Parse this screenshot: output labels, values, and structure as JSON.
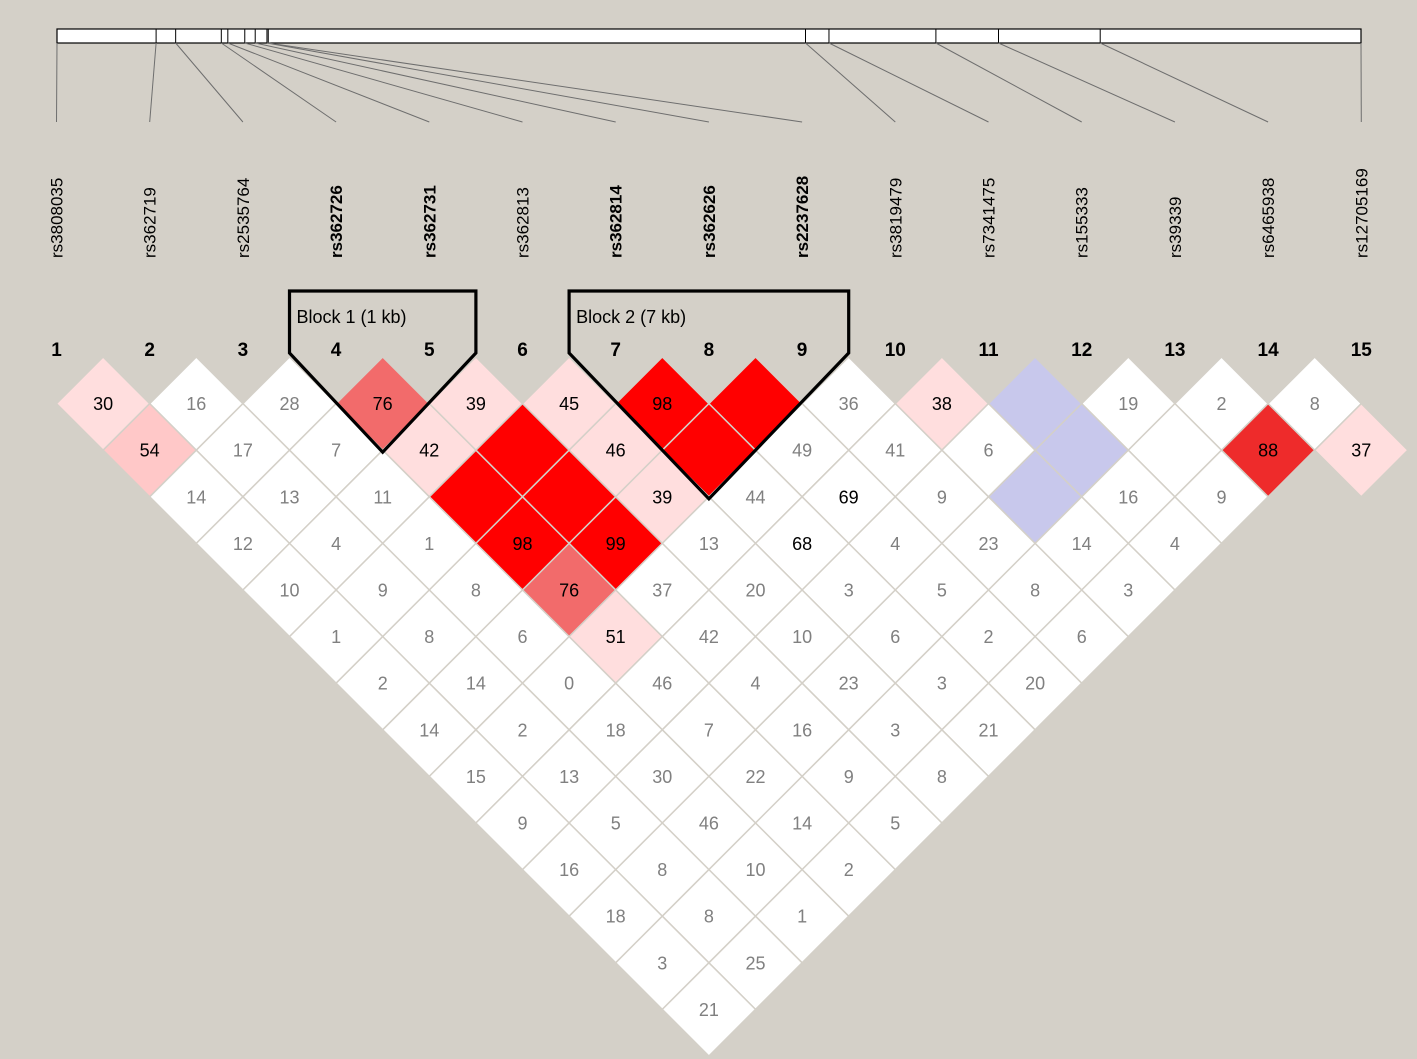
{
  "snps": [
    {
      "index": "1",
      "name": "rs3808035",
      "bold": false
    },
    {
      "index": "2",
      "name": "rs362719",
      "bold": false
    },
    {
      "index": "3",
      "name": "rs2535764",
      "bold": false
    },
    {
      "index": "4",
      "name": "rs362726",
      "bold": true
    },
    {
      "index": "5",
      "name": "rs362731",
      "bold": true
    },
    {
      "index": "6",
      "name": "rs362813",
      "bold": false
    },
    {
      "index": "7",
      "name": "rs362814",
      "bold": true
    },
    {
      "index": "8",
      "name": "rs362626",
      "bold": true
    },
    {
      "index": "9",
      "name": "rs2237628",
      "bold": true
    },
    {
      "index": "10",
      "name": "rs3819479",
      "bold": false
    },
    {
      "index": "11",
      "name": "rs7341475",
      "bold": false
    },
    {
      "index": "12",
      "name": "rs155333",
      "bold": false
    },
    {
      "index": "13",
      "name": "rs39339",
      "bold": false
    },
    {
      "index": "14",
      "name": "rs6465938",
      "bold": false
    },
    {
      "index": "15",
      "name": "rs12705169",
      "bold": false
    }
  ],
  "gene_map_fractions": [
    0.0,
    0.076,
    0.091,
    0.126,
    0.131,
    0.144,
    0.152,
    0.161,
    0.162,
    0.574,
    0.592,
    0.674,
    0.722,
    0.8,
    1.0
  ],
  "blocks": [
    {
      "label": "Block 1 (1 kb)",
      "from": 4,
      "to": 5
    },
    {
      "label": "Block 2 (7 kb)",
      "from": 7,
      "to": 9
    }
  ],
  "ld_rows": [
    [
      "30",
      "16",
      "28",
      "76",
      "39",
      "45",
      "98",
      "",
      "36",
      "38",
      "",
      "19",
      "2",
      "8"
    ],
    [
      "54",
      "17",
      "7",
      "42",
      "",
      "46",
      "",
      "49",
      "41",
      "6",
      "",
      "",
      "88",
      "37"
    ],
    [
      "14",
      "13",
      "11",
      "",
      "",
      "39",
      "44",
      "69",
      "9",
      "",
      "16",
      "9"
    ],
    [
      "12",
      "4",
      "1",
      "98",
      "99",
      "13",
      "68",
      "4",
      "23",
      "14",
      "4"
    ],
    [
      "10",
      "9",
      "8",
      "76",
      "37",
      "20",
      "3",
      "5",
      "8",
      "3"
    ],
    [
      "1",
      "8",
      "6",
      "51",
      "42",
      "10",
      "6",
      "2",
      "6"
    ],
    [
      "2",
      "14",
      "0",
      "46",
      "4",
      "23",
      "3",
      "20"
    ],
    [
      "14",
      "2",
      "18",
      "7",
      "16",
      "3",
      "21"
    ],
    [
      "15",
      "13",
      "30",
      "22",
      "9",
      "8"
    ],
    [
      "9",
      "5",
      "46",
      "14",
      "5"
    ],
    [
      "16",
      "8",
      "10",
      "2"
    ],
    [
      "18",
      "8",
      "1"
    ],
    [
      "3",
      "25"
    ],
    [
      "21"
    ]
  ],
  "ld_colors": [
    [
      "#ffdede",
      "#ffffff",
      "#ffffff",
      "#f26b6b",
      "#ffdede",
      "#ffdede",
      "#ff0000",
      "#ff0000",
      "#ffffff",
      "#ffdede",
      "#c8c8ec",
      "#ffffff",
      "#ffffff",
      "#ffffff"
    ],
    [
      "#ffc8c8",
      "#ffffff",
      "#ffffff",
      "#ffdede",
      "#ff0000",
      "#ffdede",
      "#ff0000",
      "#ffffff",
      "#ffffff",
      "#ffffff",
      "#c8c8ec",
      "#ffffff",
      "#ee2b2b",
      "#ffdede"
    ],
    [
      "#ffffff",
      "#ffffff",
      "#ffffff",
      "#ff0000",
      "#ff0000",
      "#ffdede",
      "#ffffff",
      "#ffffff",
      "#ffffff",
      "#c8c8ec",
      "#ffffff",
      "#ffffff"
    ],
    [
      "#ffffff",
      "#ffffff",
      "#ffffff",
      "#ff0000",
      "#ff0000",
      "#ffffff",
      "#ffffff",
      "#ffffff",
      "#ffffff",
      "#ffffff",
      "#ffffff"
    ],
    [
      "#ffffff",
      "#ffffff",
      "#ffffff",
      "#f26b6b",
      "#ffffff",
      "#ffffff",
      "#ffffff",
      "#ffffff",
      "#ffffff",
      "#ffffff"
    ],
    [
      "#ffffff",
      "#ffffff",
      "#ffffff",
      "#ffdede",
      "#ffffff",
      "#ffffff",
      "#ffffff",
      "#ffffff",
      "#ffffff"
    ],
    [
      "#ffffff",
      "#ffffff",
      "#ffffff",
      "#ffffff",
      "#ffffff",
      "#ffffff",
      "#ffffff",
      "#ffffff"
    ],
    [
      "#ffffff",
      "#ffffff",
      "#ffffff",
      "#ffffff",
      "#ffffff",
      "#ffffff",
      "#ffffff"
    ],
    [
      "#ffffff",
      "#ffffff",
      "#ffffff",
      "#ffffff",
      "#ffffff",
      "#ffffff"
    ],
    [
      "#ffffff",
      "#ffffff",
      "#ffffff",
      "#ffffff",
      "#ffffff"
    ],
    [
      "#ffffff",
      "#ffffff",
      "#ffffff",
      "#ffffff"
    ],
    [
      "#ffffff",
      "#ffffff",
      "#ffffff"
    ],
    [
      "#ffffff",
      "#ffffff"
    ],
    [
      "#ffffff"
    ]
  ],
  "dark_text_values": [
    "30",
    "54",
    "76",
    "42",
    "39",
    "45",
    "98",
    "46",
    "99",
    "51",
    "38",
    "88",
    "37",
    "69",
    "68"
  ],
  "colors": {
    "background": "#d4d0c8",
    "strong_ld": "#ff0000",
    "low_lod": "#c8c8ec",
    "cell_border": "#d4d0c8",
    "dark_text": "#000000",
    "light_text": "#808080"
  }
}
